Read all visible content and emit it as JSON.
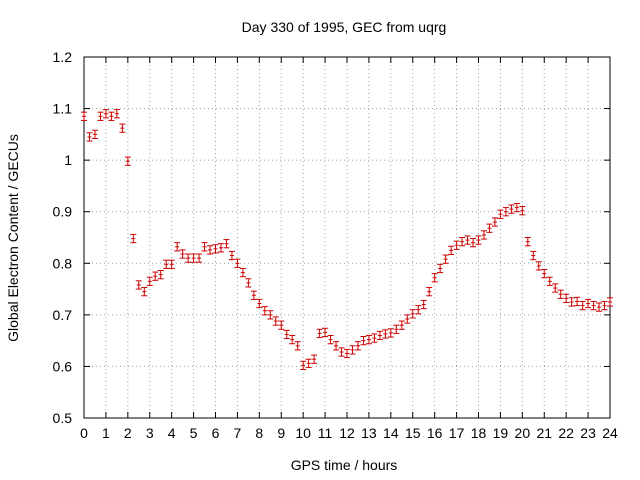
{
  "chart_data": {
    "type": "scatter",
    "title": "Day 330 of 1995, GEC from uqrg",
    "xlabel": "GPS time / hours",
    "ylabel": "Global Electron Content / GECUs",
    "xlim": [
      0,
      24
    ],
    "ylim": [
      0.5,
      1.2
    ],
    "grid": true,
    "marker_color": "#cc0000",
    "xticks": [
      "0",
      "1",
      "2",
      "3",
      "4",
      "5",
      "6",
      "7",
      "8",
      "9",
      "10",
      "11",
      "12",
      "13",
      "14",
      "15",
      "16",
      "17",
      "18",
      "19",
      "20",
      "21",
      "22",
      "23",
      "24"
    ],
    "yticks": [
      "0.5",
      "0.6",
      "0.7",
      "0.8",
      "0.9",
      "1",
      "1.1",
      "1.2"
    ],
    "error": 0.008,
    "series": [
      {
        "x": [
          0,
          0.25,
          0.5,
          0.75,
          1,
          1.25,
          1.5,
          1.75,
          2,
          2.25,
          2.5,
          2.75,
          3,
          3.25,
          3.5,
          3.75,
          4,
          4.25,
          4.5,
          4.75,
          5,
          5.25,
          5.5,
          5.75,
          6,
          6.25,
          6.5,
          6.75,
          7,
          7.25,
          7.5,
          7.75,
          8,
          8.25,
          8.5,
          8.75,
          9,
          9.25,
          9.5,
          9.75,
          10,
          10.25,
          10.5,
          10.75,
          11,
          11.25,
          11.5,
          11.75,
          12,
          12.25,
          12.5,
          12.75,
          13,
          13.25,
          13.5,
          13.75,
          14,
          14.25,
          14.5,
          14.75,
          15,
          15.25,
          15.5,
          15.75,
          16,
          16.25,
          16.5,
          16.75,
          17,
          17.25,
          17.5,
          17.75,
          18,
          18.25,
          18.5,
          18.75,
          19,
          19.25,
          19.5,
          19.75,
          20,
          20.25,
          20.5,
          20.75,
          21,
          21.25,
          21.5,
          21.75,
          22,
          22.25,
          22.5,
          22.75,
          23,
          23.25,
          23.5,
          23.75,
          24
        ],
        "y": [
          1.085,
          1.045,
          1.05,
          1.085,
          1.09,
          1.085,
          1.09,
          1.062,
          0.998,
          0.848,
          0.758,
          0.745,
          0.765,
          0.775,
          0.778,
          0.798,
          0.798,
          0.832,
          0.818,
          0.81,
          0.81,
          0.81,
          0.832,
          0.826,
          0.828,
          0.83,
          0.838,
          0.815,
          0.8,
          0.782,
          0.762,
          0.738,
          0.722,
          0.708,
          0.7,
          0.688,
          0.68,
          0.662,
          0.652,
          0.64,
          0.602,
          0.606,
          0.614,
          0.664,
          0.666,
          0.652,
          0.64,
          0.628,
          0.625,
          0.632,
          0.64,
          0.65,
          0.652,
          0.655,
          0.66,
          0.663,
          0.665,
          0.672,
          0.68,
          0.692,
          0.702,
          0.71,
          0.72,
          0.745,
          0.772,
          0.79,
          0.808,
          0.825,
          0.835,
          0.842,
          0.845,
          0.84,
          0.845,
          0.855,
          0.868,
          0.88,
          0.895,
          0.9,
          0.905,
          0.908,
          0.902,
          0.842,
          0.815,
          0.795,
          0.78,
          0.765,
          0.752,
          0.74,
          0.732,
          0.725,
          0.726,
          0.718,
          0.722,
          0.718,
          0.715,
          0.718,
          0.725
        ]
      }
    ]
  }
}
